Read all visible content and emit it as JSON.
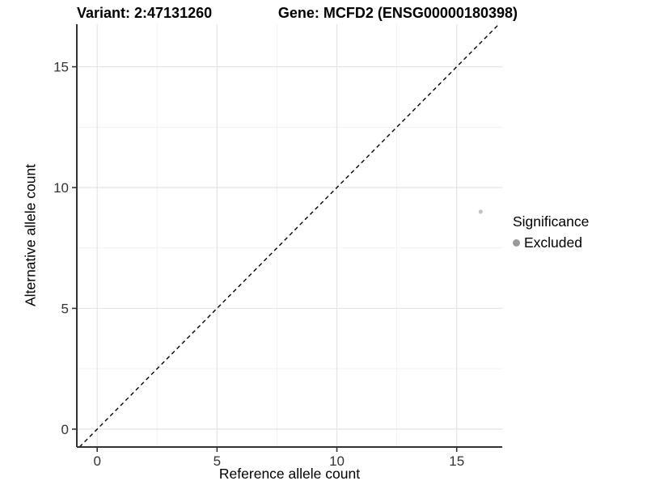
{
  "header": {
    "title_left": "Variant: 2:47131260",
    "title_right": "Gene: MCFD2 (ENSG00000180398)"
  },
  "legend": {
    "title": "Significance",
    "items": [
      {
        "label": "Excluded",
        "color": "#9a9a9a"
      }
    ]
  },
  "chart_data": {
    "type": "scatter",
    "title": "Variant: 2:47131260    Gene: MCFD2 (ENSG00000180398)",
    "xlabel": "Reference allele count",
    "ylabel": "Alternative allele count",
    "xlim": [
      -0.85,
      16.9
    ],
    "ylim": [
      -0.74,
      16.76
    ],
    "x_ticks": [
      0,
      5,
      10,
      15
    ],
    "y_ticks": [
      0,
      5,
      10,
      15
    ],
    "x_minor_ticks": [
      2.5,
      7.5,
      12.5
    ],
    "y_minor_ticks": [
      2.5,
      7.5,
      12.5
    ],
    "grid": true,
    "legend_position": "right",
    "identity_line": {
      "shown": true,
      "style": "dashed",
      "color": "#000000"
    },
    "series": [
      {
        "name": "Excluded",
        "points": [
          {
            "x": 16,
            "y": 9
          }
        ],
        "color": "#c3c3c3",
        "radius": 2.6
      }
    ]
  },
  "colors": {
    "axis_line": "#333333",
    "tick_label": "#333333",
    "grid_major": "#e4e4e4",
    "grid_minor": "#f1f1f1",
    "background": "#ffffff"
  }
}
